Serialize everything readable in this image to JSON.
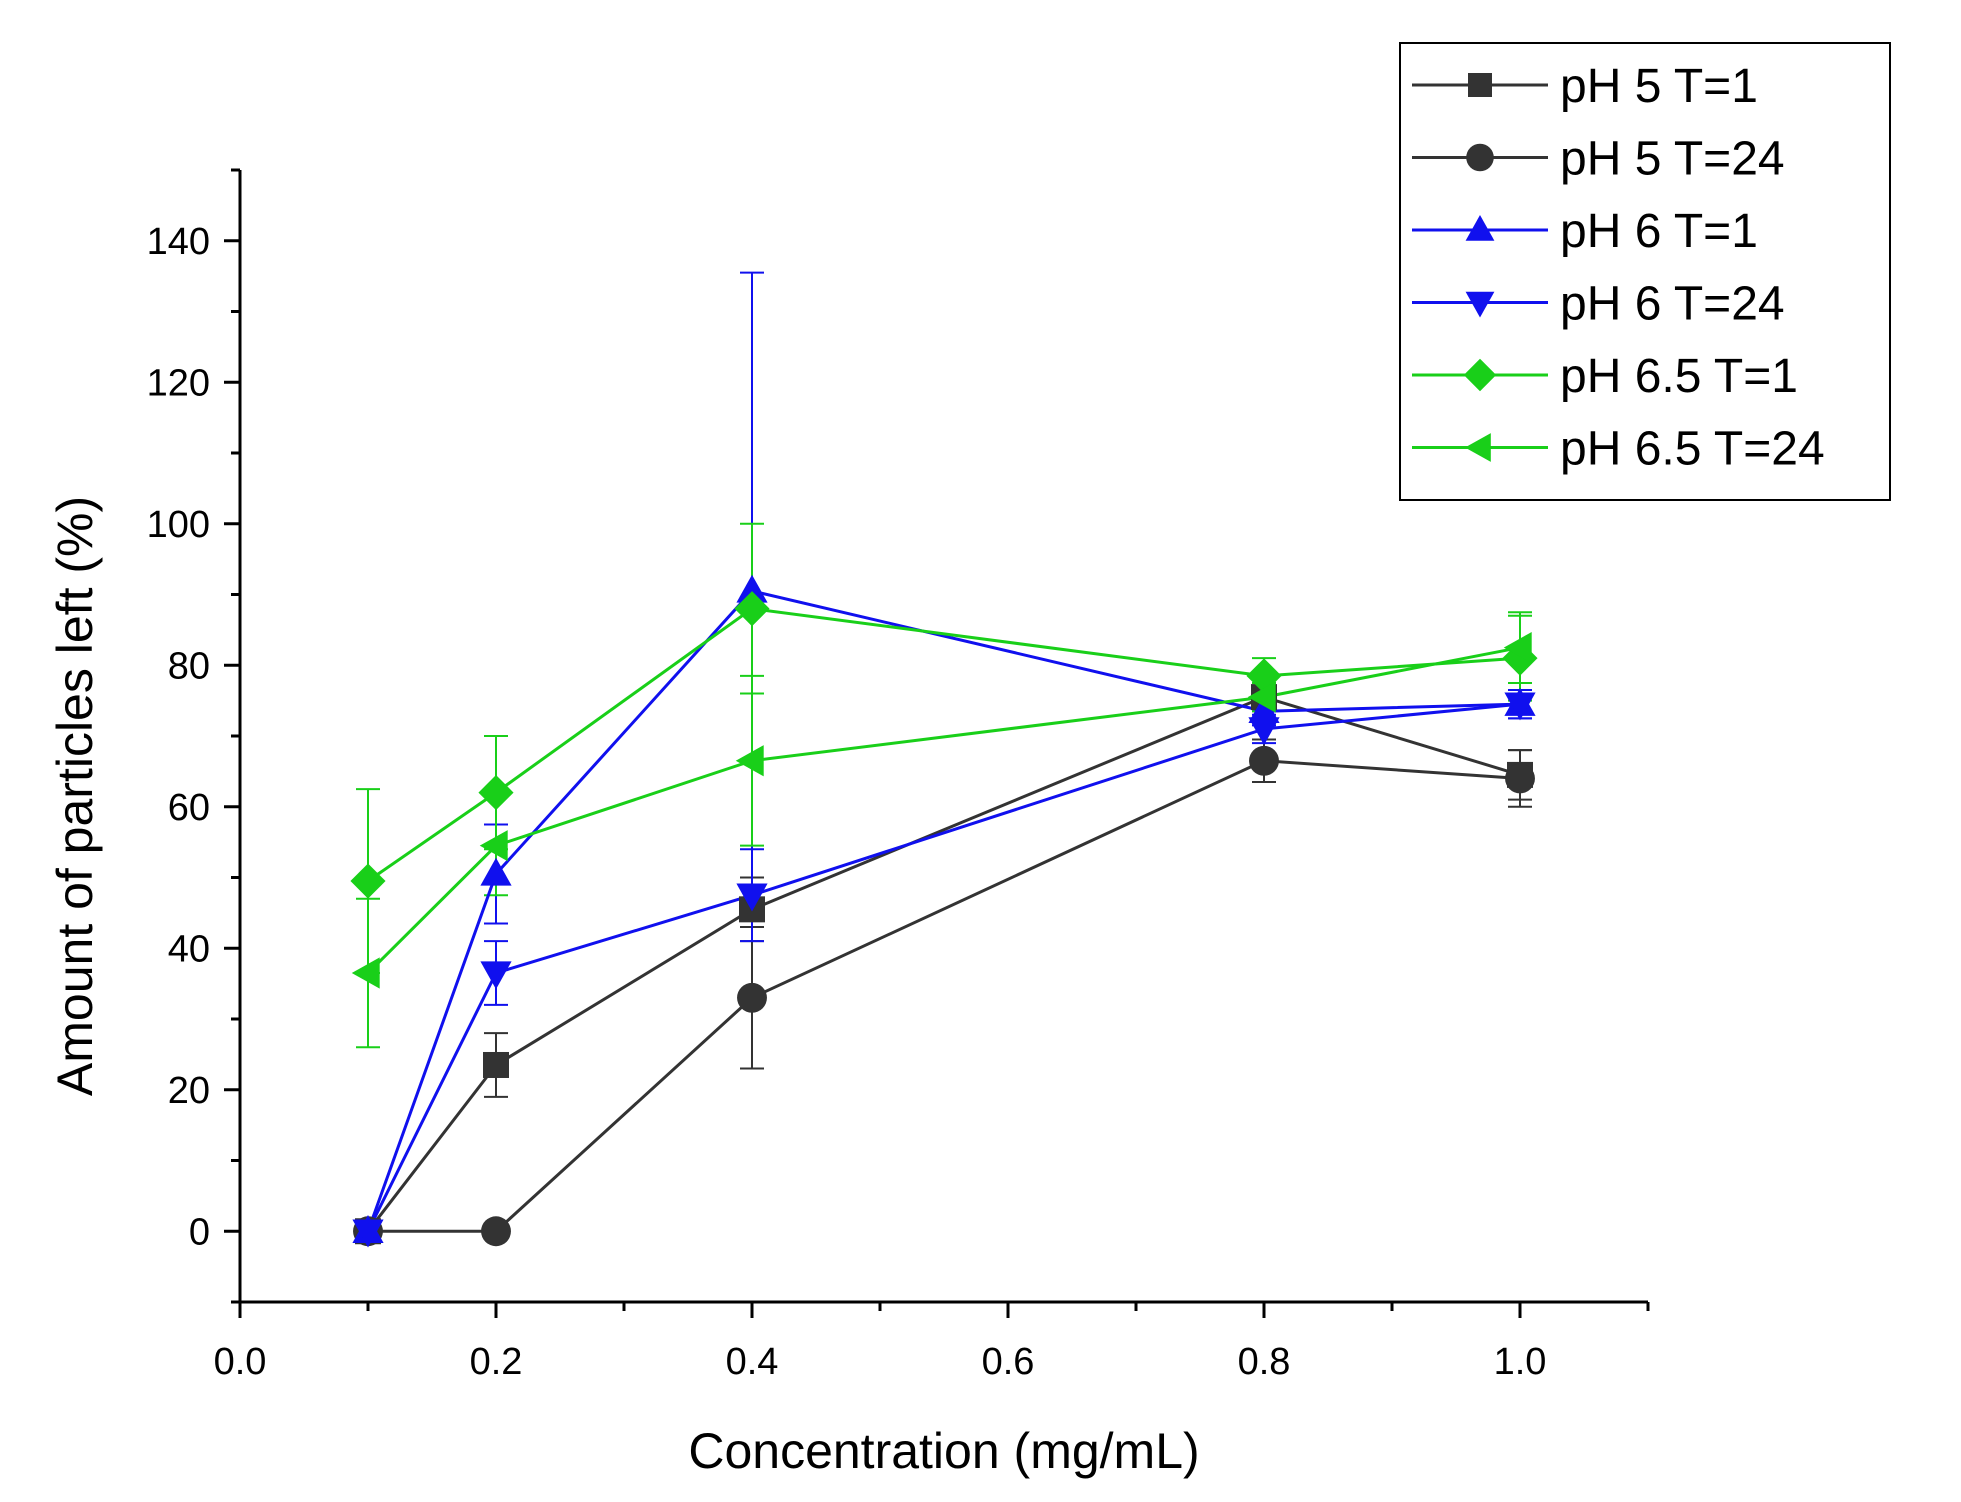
{
  "chart_data": {
    "type": "line",
    "title": "",
    "xlabel": "Concentration (mg/mL)",
    "ylabel": "Amount of particles left (%)",
    "xlim": [
      0.0,
      1.1
    ],
    "ylim": [
      -10,
      150
    ],
    "xticks": [
      0.0,
      0.2,
      0.4,
      0.6,
      0.8,
      1.0
    ],
    "yticks": [
      0,
      20,
      40,
      60,
      80,
      100,
      120,
      140
    ],
    "x_tick_labels": [
      "0.0",
      "0.2",
      "0.4",
      "0.6",
      "0.8",
      "1.0"
    ],
    "y_tick_labels": [
      "0",
      "20",
      "40",
      "60",
      "80",
      "100",
      "120",
      "140"
    ],
    "grid": false,
    "legend_position": "top-right",
    "series": [
      {
        "name": "pH 5 T=1",
        "color": "#333333",
        "marker": "square",
        "x": [
          0.1,
          0.2,
          0.4,
          0.8,
          1.0
        ],
        "y": [
          0,
          23.5,
          45.5,
          75.5,
          64.5
        ],
        "err": [
          0,
          4.5,
          4.5,
          2.0,
          3.5
        ]
      },
      {
        "name": "pH 5 T=24",
        "color": "#333333",
        "marker": "circle",
        "x": [
          0.1,
          0.2,
          0.4,
          0.8,
          1.0
        ],
        "y": [
          0,
          0,
          33,
          66.5,
          64
        ],
        "err": [
          0,
          0,
          10,
          3.0,
          4.0
        ]
      },
      {
        "name": "pH 6 T=1",
        "color": "#1010ee",
        "marker": "triangle-up",
        "x": [
          0.1,
          0.2,
          0.4,
          0.8,
          1.0
        ],
        "y": [
          0,
          50.5,
          90.5,
          73.5,
          74.5
        ],
        "err": [
          0,
          7.0,
          45.0,
          2.0,
          2.0
        ]
      },
      {
        "name": "pH 6 T=24",
        "color": "#1010ee",
        "marker": "triangle-down",
        "x": [
          0.1,
          0.2,
          0.4,
          0.8,
          1.0
        ],
        "y": [
          0,
          36.5,
          47.5,
          71.0,
          74.5
        ],
        "err": [
          0,
          4.5,
          6.5,
          2.0,
          2.0
        ]
      },
      {
        "name": "pH 6.5 T=1",
        "color": "#19cf19",
        "marker": "diamond",
        "x": [
          0.1,
          0.2,
          0.4,
          0.8,
          1.0
        ],
        "y": [
          49.5,
          62,
          88,
          78.5,
          81
        ],
        "err": [
          13.0,
          8.0,
          12.0,
          2.5,
          6.0
        ]
      },
      {
        "name": "pH 6.5 T=24",
        "color": "#19cf19",
        "marker": "triangle-left",
        "x": [
          0.1,
          0.2,
          0.4,
          0.8,
          1.0
        ],
        "y": [
          36.5,
          54.5,
          66.5,
          75.5,
          82.5
        ],
        "err": [
          10.5,
          7.0,
          12.0,
          2.0,
          5.0
        ]
      }
    ]
  }
}
